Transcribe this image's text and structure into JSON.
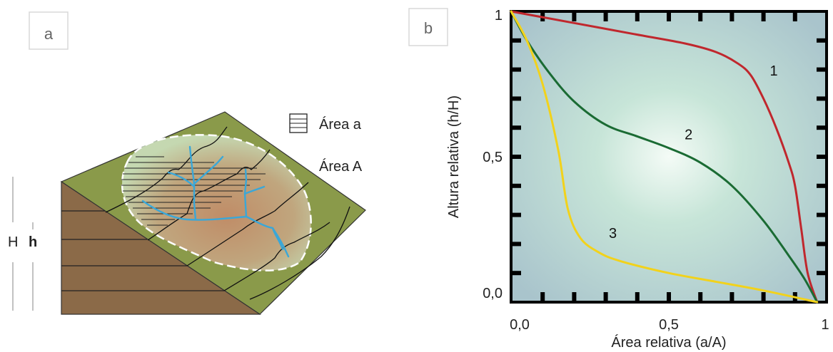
{
  "panel_a": {
    "label": "a",
    "legend": {
      "area_small": "Área a",
      "area_big": "Área A"
    },
    "height_labels": {
      "H": "H",
      "h": "h"
    }
  },
  "panel_b": {
    "label": "b"
  },
  "chart_data": {
    "type": "line",
    "title": "",
    "xlabel": "Área relativa (a/A)",
    "ylabel": "Altura relativa (h/H)",
    "xlim": [
      0,
      1
    ],
    "ylim": [
      0,
      1
    ],
    "x_tick_labels": [
      "0,0",
      "0,5",
      "1"
    ],
    "y_tick_labels": [
      "0,0",
      "0,5",
      "1"
    ],
    "x_tick_values": [
      0,
      0.5,
      1
    ],
    "y_tick_values": [
      0,
      0.5,
      1
    ],
    "grid": false,
    "series": [
      {
        "name": "1",
        "color": "#c0272d",
        "x": [
          0,
          0.2,
          0.4,
          0.55,
          0.65,
          0.72,
          0.76,
          0.8,
          0.84,
          0.88,
          0.9,
          0.92,
          0.94,
          0.97
        ],
        "y": [
          1,
          0.96,
          0.92,
          0.89,
          0.86,
          0.82,
          0.78,
          0.7,
          0.6,
          0.48,
          0.4,
          0.25,
          0.1,
          0
        ]
      },
      {
        "name": "2",
        "color": "#1a6b33",
        "x": [
          0,
          0.05,
          0.12,
          0.2,
          0.3,
          0.4,
          0.5,
          0.6,
          0.7,
          0.8,
          0.88,
          0.93,
          0.97
        ],
        "y": [
          1,
          0.9,
          0.79,
          0.69,
          0.61,
          0.57,
          0.53,
          0.48,
          0.4,
          0.28,
          0.16,
          0.08,
          0
        ]
      },
      {
        "name": "3",
        "color": "#f2d21b",
        "x": [
          0,
          0.05,
          0.1,
          0.15,
          0.18,
          0.22,
          0.28,
          0.35,
          0.5,
          0.65,
          0.8,
          0.97
        ],
        "y": [
          1,
          0.9,
          0.75,
          0.52,
          0.32,
          0.22,
          0.17,
          0.14,
          0.1,
          0.07,
          0.04,
          0
        ]
      }
    ]
  }
}
